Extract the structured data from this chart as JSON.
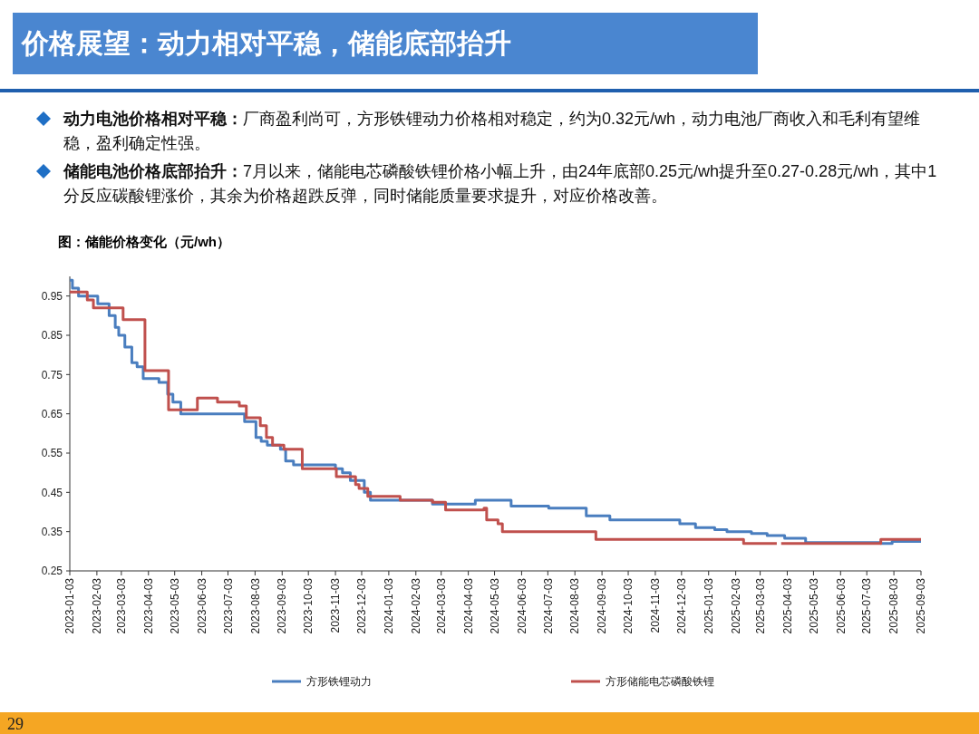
{
  "chart_data": {
    "type": "step",
    "title": "价格展望：动力相对平稳，储能底部抬升",
    "subtitle": "图：储能价格变化（元/wh）",
    "annotations": [
      "动力电池价格相对平稳：厂商盈利尚可，方形铁锂动力价格相对稳定，约为0.32元/wh，动力电池厂商收入和毛利有望维稳，盈利确定性强。",
      "储能电池价格底部抬升：7月以来，储能电芯磷酸铁锂价格小幅上升，由24年底部0.25元/wh提升至0.27-0.28元/wh，其中1分反应碳酸锂涨价，其余为价格超跌反弹，同时储能质量要求提升，对应价格改善。",
      "29"
    ],
    "xlim": [
      "2023-01-03",
      "2025-09-03"
    ],
    "xticks": [
      "2023-01-03",
      "2023-02-03",
      "2023-03-03",
      "2023-04-03",
      "2023-05-03",
      "2023-06-03",
      "2023-07-03",
      "2023-08-03",
      "2023-09-03",
      "2023-10-03",
      "2023-11-03",
      "2023-12-03",
      "2024-01-03",
      "2024-02-03",
      "2024-03-03",
      "2024-04-03",
      "2024-05-03",
      "2024-06-03",
      "2024-07-03",
      "2024-08-03",
      "2024-09-03",
      "2024-10-03",
      "2024-11-03",
      "2024-12-03",
      "2025-01-03",
      "2025-02-03",
      "2025-03-03",
      "2025-04-03",
      "2025-05-03",
      "2025-06-03",
      "2025-07-03",
      "2025-08-03",
      "2025-09-03"
    ],
    "ylim": [
      0.25,
      1.0
    ],
    "yticks": [
      0.25,
      0.35,
      0.45,
      0.55,
      0.65,
      0.75,
      0.85,
      0.95
    ],
    "grid": false,
    "legend": "bottom",
    "series": [
      {
        "name": "方形铁锂动力",
        "color": "#4a7ebf",
        "x": [
          "2023-01-03",
          "2023-01-06",
          "2023-01-13",
          "2023-02-04",
          "2023-02-17",
          "2023-02-24",
          "2023-02-28",
          "2023-03-07",
          "2023-03-15",
          "2023-03-21",
          "2023-03-28",
          "2023-04-15",
          "2023-04-25",
          "2023-05-01",
          "2023-05-10",
          "2023-07-22",
          "2023-08-04",
          "2023-08-10",
          "2023-08-17",
          "2023-09-01",
          "2023-09-07",
          "2023-09-16",
          "2023-11-03",
          "2023-11-11",
          "2023-11-20",
          "2023-12-06",
          "2023-12-13",
          "2024-02-22",
          "2024-04-11",
          "2024-05-22",
          "2024-07-04",
          "2024-08-16",
          "2024-09-12",
          "2024-12-01",
          "2024-12-19",
          "2025-01-10",
          "2025-01-24",
          "2025-02-21",
          "2025-03-11",
          "2025-03-31",
          "2025-04-24",
          "2025-07-19",
          "2025-08-01",
          "2025-09-03"
        ],
        "values": [
          0.99,
          0.97,
          0.95,
          0.93,
          0.9,
          0.87,
          0.85,
          0.82,
          0.78,
          0.77,
          0.74,
          0.73,
          0.7,
          0.68,
          0.65,
          0.63,
          0.59,
          0.58,
          0.57,
          0.56,
          0.53,
          0.52,
          0.51,
          0.5,
          0.48,
          0.45,
          0.43,
          0.42,
          0.43,
          0.415,
          0.41,
          0.39,
          0.38,
          0.37,
          0.36,
          0.355,
          0.35,
          0.345,
          0.34,
          0.333,
          0.322,
          0.32,
          0.325,
          0.325
        ]
      },
      {
        "name": "方形储能电芯磷酸铁锂",
        "color": "#c0504d",
        "x": [
          "2023-01-03",
          "2023-01-23",
          "2023-01-30",
          "2023-03-05",
          "2023-03-30",
          "2023-04-26",
          "2023-05-29",
          "2023-06-21",
          "2023-07-16",
          "2023-07-24",
          "2023-08-09",
          "2023-08-16",
          "2023-08-23",
          "2023-09-05",
          "2023-09-26",
          "2023-11-04",
          "2023-11-26",
          "2023-11-30",
          "2023-12-10",
          "2024-01-16",
          "2024-02-22",
          "2024-03-08",
          "2024-04-21",
          "2024-04-24",
          "2024-05-07",
          "2024-05-12",
          "2024-08-27",
          "2025-02-12",
          "2025-03-22",
          "2025-03-24",
          "2025-03-27",
          "2025-07-19",
          "2025-09-03"
        ],
        "values": [
          0.96,
          0.94,
          0.92,
          0.89,
          0.76,
          0.66,
          0.69,
          0.68,
          0.67,
          0.64,
          0.62,
          0.59,
          0.57,
          0.56,
          0.51,
          0.49,
          0.47,
          0.46,
          0.44,
          0.43,
          0.425,
          0.405,
          0.41,
          0.38,
          0.37,
          0.35,
          0.33,
          0.32,
          0.32,
          null,
          0.32,
          0.33,
          0.33
        ]
      }
    ]
  }
}
